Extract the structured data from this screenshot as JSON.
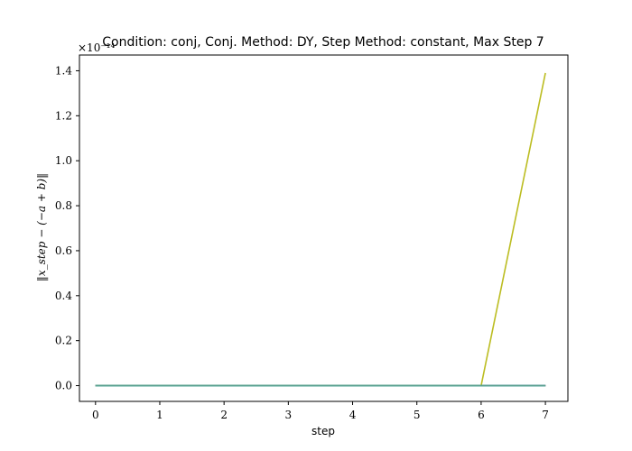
{
  "chart_data": {
    "type": "line",
    "title": "Condition: conj, Conj. Method: DY, Step Method: constant, Max Step 7",
    "xlabel": "step",
    "ylabel": "‖x_step − (−a + b)‖",
    "y_offset_text": "×10⁻¹⁴",
    "xlim": [
      -0.25,
      7.35
    ],
    "ylim": [
      -0.07,
      1.47
    ],
    "x_ticks": [
      0,
      1,
      2,
      3,
      4,
      5,
      6,
      7
    ],
    "x_tick_labels": [
      "0",
      "1",
      "2",
      "3",
      "4",
      "5",
      "6",
      "7"
    ],
    "y_ticks": [
      0.0,
      0.2,
      0.4,
      0.6,
      0.8,
      1.0,
      1.2,
      1.4
    ],
    "y_tick_labels": [
      "0.0",
      "0.2",
      "0.4",
      "0.6",
      "0.8",
      "1.0",
      "1.2",
      "1.4"
    ],
    "grid": false,
    "legend": "none",
    "series": [
      {
        "color": "#1f77b4",
        "x": [
          0,
          1,
          2,
          3,
          4,
          5,
          6,
          7
        ],
        "y": [
          0,
          0,
          0,
          0,
          0,
          0,
          0,
          0
        ]
      },
      {
        "color": "#ff7f0e",
        "x": [
          0,
          1,
          2,
          3,
          4,
          5,
          6,
          7
        ],
        "y": [
          0,
          0,
          0,
          0,
          0,
          0,
          0,
          0
        ]
      },
      {
        "color": "#2ca02c",
        "x": [
          0,
          1,
          2,
          3,
          4,
          5,
          6,
          7
        ],
        "y": [
          0,
          0,
          0,
          0,
          0,
          0,
          0,
          0
        ]
      },
      {
        "color": "#d62728",
        "x": [
          0,
          1,
          2,
          3,
          4,
          5,
          6,
          7
        ],
        "y": [
          0,
          0,
          0,
          0,
          0,
          0,
          0,
          0
        ]
      },
      {
        "color": "#9467bd",
        "x": [
          0,
          1,
          2,
          3,
          4,
          5,
          6,
          7
        ],
        "y": [
          0,
          0,
          0,
          0,
          0,
          0,
          0,
          0
        ]
      },
      {
        "color": "#8c564b",
        "x": [
          0,
          1,
          2,
          3,
          4,
          5,
          6,
          7
        ],
        "y": [
          0,
          0,
          0,
          0,
          0,
          0,
          0,
          0
        ]
      },
      {
        "color": "#e377c2",
        "x": [
          0,
          1,
          2,
          3,
          4,
          5,
          6,
          7
        ],
        "y": [
          0,
          0,
          0,
          0,
          0,
          0,
          0,
          0
        ]
      },
      {
        "color": "#7f7f7f",
        "x": [
          0,
          1,
          2,
          3,
          4,
          5,
          6,
          7
        ],
        "y": [
          0,
          0,
          0,
          0,
          0,
          0,
          0,
          0
        ]
      },
      {
        "color": "#bcbd22",
        "x": [
          0,
          1,
          2,
          3,
          4,
          5,
          6,
          7
        ],
        "y": [
          0,
          0,
          0,
          0,
          0,
          0,
          0,
          1.39
        ]
      },
      {
        "color": "#17becf",
        "x": [
          0,
          1,
          2,
          3,
          4,
          5,
          6,
          7
        ],
        "y": [
          0,
          0,
          0,
          0,
          0,
          0,
          0,
          0
        ]
      },
      {
        "color": "#5aa08f",
        "x": [
          0,
          1,
          2,
          3,
          4,
          5,
          6,
          7
        ],
        "y": [
          0,
          0,
          0,
          0,
          0,
          0,
          0,
          0
        ]
      }
    ]
  }
}
